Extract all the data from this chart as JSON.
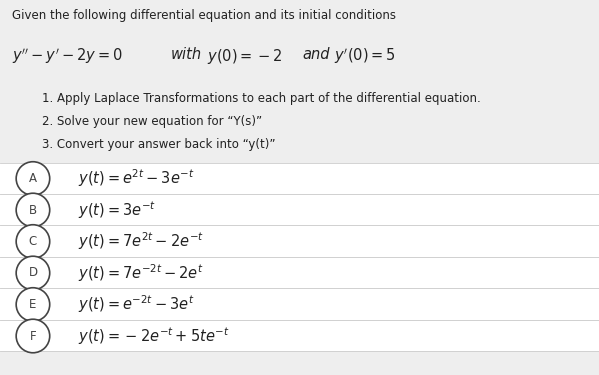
{
  "bg_color": "#eeeeee",
  "white": "#ffffff",
  "header_text": "Given the following differential equation and its initial conditions",
  "equation_parts": [
    {
      "text": "$y'' - y' - 2y = 0$",
      "style": "math"
    },
    {
      "text": "  with  ",
      "style": "italic"
    },
    {
      "text": "$y(0) = -2$",
      "style": "math"
    },
    {
      "text": "  and  ",
      "style": "italic"
    },
    {
      "text": "$y'(0) = 5$",
      "style": "math"
    }
  ],
  "steps": [
    "1. Apply Laplace Transformations to each part of the differential equation.",
    "2. Solve your new equation for “Y(s)”",
    "3. Convert your answer back into “y(t)”"
  ],
  "choices": [
    {
      "label": "A",
      "expr": "$y(t) = e^{2t} - 3e^{-t}$"
    },
    {
      "label": "B",
      "expr": "$y(t) = 3e^{-t}$"
    },
    {
      "label": "C",
      "expr": "$y(t) = 7e^{2t} - 2e^{-t}$"
    },
    {
      "label": "D",
      "expr": "$y(t) = 7e^{-2t} - 2e^{t}$"
    },
    {
      "label": "E",
      "expr": "$y(t) = e^{-2t} - 3e^{t}$"
    },
    {
      "label": "F",
      "expr": "$y(t) = -2e^{-t} + 5te^{-t}$"
    }
  ],
  "header_fontsize": 8.5,
  "equation_fontsize": 10.5,
  "steps_fontsize": 8.5,
  "choice_fontsize": 10.5,
  "text_color": "#222222",
  "circle_edge_color": "#444444",
  "divider_color": "#cccccc"
}
